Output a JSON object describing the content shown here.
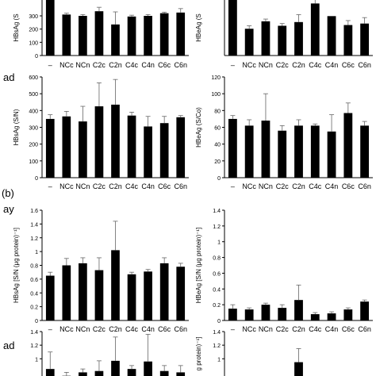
{
  "figure_labels": {
    "row2_label": "ad",
    "part_b": "(b)",
    "row3_label": "ay",
    "row4_label": "ad"
  },
  "chart_data": [
    {
      "type": "bar",
      "panel": "a-day-left",
      "ylabel": "HBsAg (S",
      "ylim": [
        0,
        450
      ],
      "yticks": [
        300,
        200,
        100,
        0
      ],
      "categories": [
        "–",
        "NCc",
        "NCn",
        "C2c",
        "C2n",
        "C4c",
        "C4n",
        "C6c",
        "C6n"
      ],
      "values": [
        420,
        310,
        300,
        335,
        235,
        295,
        300,
        320,
        325
      ],
      "errors": [
        0,
        10,
        10,
        30,
        95,
        10,
        10,
        8,
        30
      ]
    },
    {
      "type": "bar",
      "panel": "a-day-right",
      "ylabel": "HBeAg (S",
      "ylim": [
        0,
        80
      ],
      "yticks": [],
      "categories": [
        "–",
        "NCc",
        "NCn",
        "C2c",
        "C2n",
        "C4c",
        "C4n",
        "C6c",
        "C6n"
      ],
      "values": [
        75,
        36,
        46,
        40,
        45,
        70,
        53,
        41,
        43
      ],
      "errors": [
        0,
        4,
        3,
        3,
        10,
        5,
        0,
        6,
        8
      ]
    },
    {
      "type": "bar",
      "panel": "a-ad-left",
      "ylabel": "HBsAg (S/N)",
      "ylim": [
        0,
        600
      ],
      "yticks": [
        0,
        100,
        200,
        300,
        400,
        500,
        600
      ],
      "categories": [
        "–",
        "NCc",
        "NCn",
        "C2c",
        "C2n",
        "C4c",
        "C4n",
        "C6c",
        "C6n"
      ],
      "values": [
        350,
        365,
        335,
        425,
        435,
        370,
        305,
        325,
        360
      ],
      "errors": [
        25,
        30,
        90,
        140,
        150,
        20,
        60,
        40,
        10
      ]
    },
    {
      "type": "bar",
      "panel": "a-ad-right",
      "ylabel": "HBeAg (S/Co)",
      "ylim": [
        0,
        120
      ],
      "yticks": [
        0,
        20,
        40,
        60,
        80,
        100,
        120
      ],
      "categories": [
        "–",
        "NCc",
        "NCn",
        "C2c",
        "C2n",
        "C4c",
        "C4n",
        "C6c",
        "C6n"
      ],
      "values": [
        70,
        62,
        68,
        56,
        62,
        62,
        55,
        77,
        62
      ],
      "errors": [
        4,
        7,
        32,
        6,
        7,
        2,
        20,
        12,
        5
      ]
    },
    {
      "type": "bar",
      "panel": "b-ay-left",
      "ylabel": "HBsAg [S/N (μg protein)⁻¹]",
      "ylim": [
        0,
        1.6
      ],
      "yticks": [
        0,
        0.2,
        0.4,
        0.6,
        0.8,
        1.0,
        1.2,
        1.4,
        1.6
      ],
      "categories": [
        "–",
        "NCc",
        "NCn",
        "C2c",
        "C2n",
        "C4c",
        "C4n",
        "C6c",
        "C6n"
      ],
      "values": [
        0.65,
        0.8,
        0.83,
        0.73,
        1.02,
        0.67,
        0.71,
        0.83,
        0.78
      ],
      "errors": [
        0.05,
        0.1,
        0.08,
        0.18,
        0.42,
        0.03,
        0.03,
        0.08,
        0.05
      ]
    },
    {
      "type": "bar",
      "panel": "b-ay-right",
      "ylabel": "HBeAg [S/N (μg protein)⁻¹]",
      "ylim": [
        0,
        1.4
      ],
      "yticks": [
        0,
        0.2,
        0.4,
        0.6,
        0.8,
        1.0,
        1.2,
        1.4
      ],
      "categories": [
        "–",
        "NCc",
        "NCn",
        "C2c",
        "C2n",
        "C4c",
        "C4n",
        "C6c",
        "C6n"
      ],
      "values": [
        0.15,
        0.14,
        0.2,
        0.16,
        0.26,
        0.08,
        0.09,
        0.14,
        0.24
      ],
      "errors": [
        0.05,
        0.02,
        0.02,
        0.04,
        0.19,
        0.02,
        0.02,
        0.02,
        0.02
      ]
    },
    {
      "type": "bar",
      "panel": "b-ad-left",
      "ylabel": "",
      "ylim": [
        0,
        1.4
      ],
      "yticks": [
        1.0,
        1.2,
        1.4
      ],
      "categories": [
        "–",
        "NCc",
        "NCn",
        "C2c",
        "C2n",
        "C4c",
        "C4n",
        "C6c",
        "C6n"
      ],
      "values": [
        0.85,
        0.75,
        0.8,
        0.82,
        0.97,
        0.85,
        0.96,
        0.82,
        0.8
      ],
      "errors": [
        0.25,
        0.05,
        0.05,
        0.15,
        0.35,
        0.05,
        0.4,
        0.08,
        0.1
      ]
    },
    {
      "type": "bar",
      "panel": "b-ad-right",
      "ylabel": "g protein)⁻¹]",
      "ylim": [
        0,
        1.4
      ],
      "yticks": [
        1.0,
        1.2,
        1.4
      ],
      "categories": [
        "–",
        "NCc",
        "NCn",
        "C2c",
        "C2n",
        "C4c",
        "C4n",
        "C6c",
        "C6n"
      ],
      "values": [
        0.2,
        0.2,
        0.2,
        0.2,
        0.95,
        0.2,
        0.2,
        0.2,
        0.2
      ],
      "errors": [
        0,
        0,
        0,
        0,
        0.2,
        0,
        0,
        0,
        0
      ]
    }
  ]
}
